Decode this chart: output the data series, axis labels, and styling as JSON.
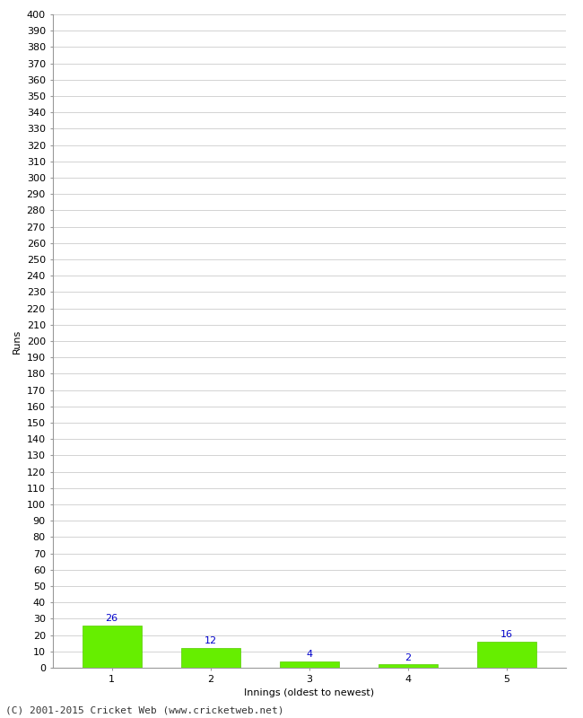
{
  "categories": [
    1,
    2,
    3,
    4,
    5
  ],
  "values": [
    26,
    12,
    4,
    2,
    16
  ],
  "bar_color": "#66ee00",
  "bar_edge_color": "#55cc00",
  "label_color": "#0000cc",
  "xlabel": "Innings (oldest to newest)",
  "ylabel": "Runs",
  "ylim": [
    0,
    400
  ],
  "ytick_step": 10,
  "background_color": "#ffffff",
  "grid_color": "#cccccc",
  "footer_text": "(C) 2001-2015 Cricket Web (www.cricketweb.net)",
  "label_fontsize": 8,
  "axis_fontsize": 8,
  "footer_fontsize": 8,
  "bar_width": 0.6
}
